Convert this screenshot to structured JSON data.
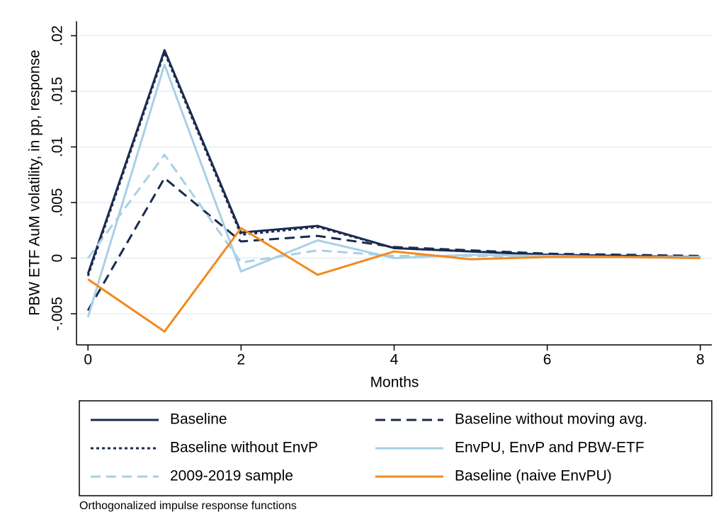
{
  "chart_data": {
    "type": "line",
    "x_label": "Months",
    "y_label": "PBW ETF AuM volatility, in pp, response",
    "note": "Orthogonalized impulse response functions",
    "x": [
      0,
      1,
      2,
      3,
      4,
      5,
      6,
      7,
      8
    ],
    "xlim": [
      -0.15,
      8.15
    ],
    "xticks": [
      0,
      2,
      4,
      6,
      8
    ],
    "ylim": [
      -0.0078,
      0.0213
    ],
    "yticks": [
      {
        "value": -0.005,
        "label": "-.005"
      },
      0,
      {
        "value": 0.005,
        "label": ".005"
      },
      {
        "value": 0.01,
        "label": ".01"
      },
      {
        "value": 0.015,
        "label": ".015"
      },
      {
        "value": 0.02,
        "label": ".02"
      }
    ],
    "grid": true,
    "series": [
      {
        "name": "Baseline",
        "color": "#1a2a4f",
        "dash": "solid",
        "values": [
          -0.0014,
          0.0187,
          0.0023,
          0.0029,
          0.0009,
          0.0006,
          0.0003,
          0.0002,
          0.0001
        ]
      },
      {
        "name": "Baseline without moving avg.",
        "color": "#1a2a4f",
        "dash": "dash",
        "values": [
          -0.0047,
          0.0072,
          0.0015,
          0.002,
          0.001,
          0.0007,
          0.0004,
          0.0003,
          0.0002
        ]
      },
      {
        "name": "Baseline without EnvP",
        "color": "#1a2a4f",
        "dash": "dot",
        "values": [
          -0.0016,
          0.0185,
          0.0021,
          0.0028,
          0.0009,
          0.0006,
          0.0003,
          0.0002,
          0.0001
        ]
      },
      {
        "name": "EnvPU, EnvP and PBW-ETF",
        "color": "#a8d0e6",
        "dash": "solid",
        "values": [
          -0.0053,
          0.0174,
          -0.0012,
          0.0016,
          0.0,
          0.0003,
          0.0002,
          0.0001,
          0.0001
        ]
      },
      {
        "name": "2009-2019 sample",
        "color": "#a8d0e6",
        "dash": "dash",
        "values": [
          0.0,
          0.0093,
          -0.0004,
          0.0007,
          0.0002,
          0.0002,
          0.0001,
          0.0001,
          0.0
        ]
      },
      {
        "name": "Baseline (naive EnvPU)",
        "color": "#f28a1e",
        "dash": "solid",
        "values": [
          -0.0019,
          -0.0066,
          0.0027,
          -0.0015,
          0.0006,
          -0.0001,
          0.0001,
          0.0001,
          0.0
        ]
      }
    ]
  }
}
